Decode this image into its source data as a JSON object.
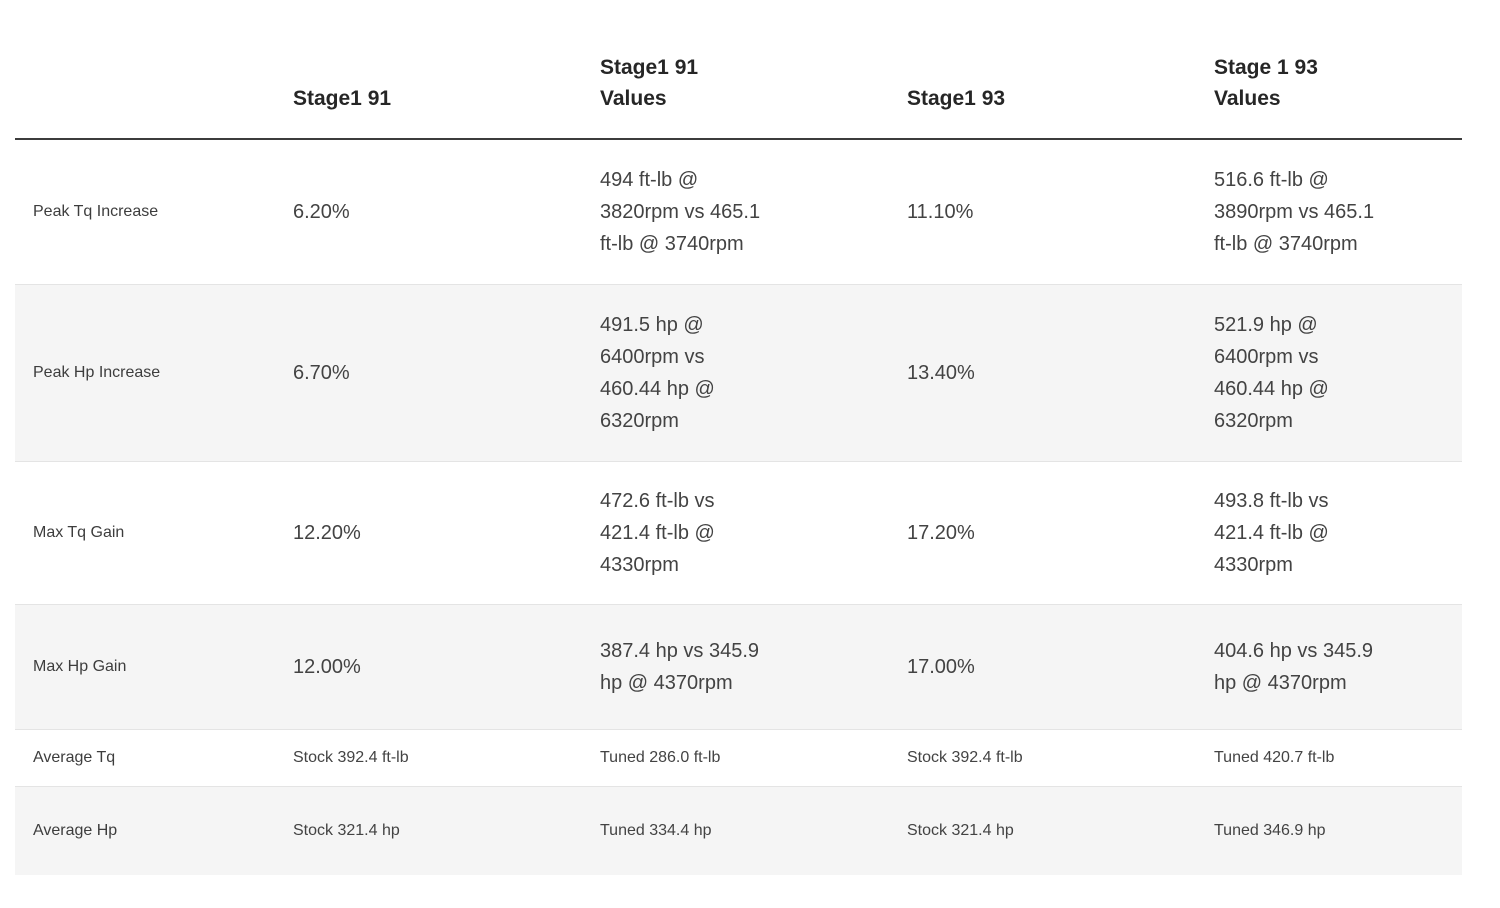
{
  "chart_data": {
    "type": "table",
    "columns": [
      "",
      "Stage1 91",
      "Stage1 91 Values",
      "Stage1 93",
      "Stage 1 93 Values"
    ],
    "rows": [
      [
        "Peak Tq Increase",
        "6.20%",
        "494 ft-lb @ 3820rpm vs 465.1 ft-lb @ 3740rpm",
        "11.10%",
        "516.6 ft-lb @ 3890rpm vs 465.1 ft-lb @ 3740rpm"
      ],
      [
        "Peak Hp Increase",
        "6.70%",
        "491.5 hp @ 6400rpm vs 460.44 hp @ 6320rpm",
        "13.40%",
        "521.9 hp @ 6400rpm vs 460.44 hp @ 6320rpm"
      ],
      [
        "Max Tq Gain",
        "12.20%",
        "472.6 ft-lb vs 421.4 ft-lb @ 4330rpm",
        "17.20%",
        "493.8 ft-lb vs 421.4 ft-lb @ 4330rpm"
      ],
      [
        "Max Hp Gain",
        "12.00%",
        "387.4 hp vs 345.9 hp @ 4370rpm",
        "17.00%",
        "404.6 hp vs 345.9 hp @ 4370rpm"
      ],
      [
        "Average Tq",
        "Stock 392.4 ft-lb",
        "Tuned 286.0 ft-lb",
        "Stock 392.4 ft-lb",
        "Tuned 420.7 ft-lb"
      ],
      [
        "Average Hp",
        "Stock 321.4 hp",
        "Tuned 334.4 hp",
        "Stock 321.4 hp",
        "Tuned 346.9 hp"
      ]
    ],
    "layout": {
      "grid": "horizontal-dividers-only",
      "stripe_rows": [
        2,
        4,
        6
      ],
      "colors": {
        "stripe": "#f5f5f5",
        "divider": "#e4e4e4",
        "header_rule": "#3c3c3c",
        "header_text": "#262626",
        "body_text": "#434343"
      }
    }
  }
}
